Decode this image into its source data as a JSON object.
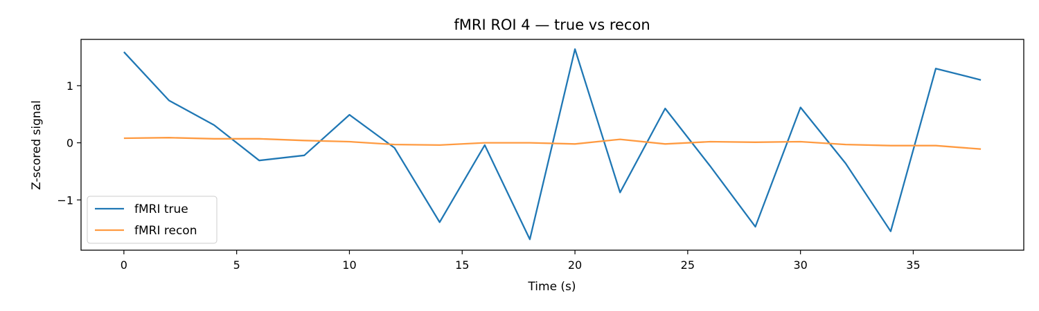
{
  "chart_data": {
    "type": "line",
    "title": "fMRI ROI 4 — true vs recon",
    "xlabel": "Time (s)",
    "ylabel": "Z-scored signal",
    "xlim": [
      -1.9,
      39.9
    ],
    "ylim": [
      -1.88,
      1.81
    ],
    "xticks": [
      0,
      5,
      10,
      15,
      20,
      25,
      30,
      35
    ],
    "yticks": [
      -1,
      0,
      1
    ],
    "ytick_labels": [
      "−1",
      "0",
      "1"
    ],
    "grid": false,
    "legend_position": "lower-left",
    "series": [
      {
        "name": "fMRI true",
        "color": "#1f77b4",
        "x": [
          0,
          2,
          4,
          6,
          8,
          10,
          12,
          14,
          16,
          18,
          20,
          22,
          24,
          26,
          28,
          30,
          32,
          34,
          36,
          38
        ],
        "values": [
          1.59,
          0.74,
          0.31,
          -0.31,
          -0.22,
          0.49,
          -0.09,
          -1.39,
          -0.04,
          -1.69,
          1.64,
          -0.87,
          0.6,
          -0.41,
          -1.47,
          0.62,
          -0.36,
          -1.55,
          1.3,
          1.1
        ]
      },
      {
        "name": "fMRI recon",
        "color": "#ff9a40",
        "x": [
          0,
          2,
          4,
          6,
          8,
          10,
          12,
          14,
          16,
          18,
          20,
          22,
          24,
          26,
          28,
          30,
          32,
          34,
          36,
          38
        ],
        "values": [
          0.08,
          0.09,
          0.07,
          0.07,
          0.04,
          0.02,
          -0.03,
          -0.04,
          0.0,
          0.0,
          -0.02,
          0.06,
          -0.02,
          0.02,
          0.01,
          0.02,
          -0.03,
          -0.05,
          -0.05,
          -0.11
        ]
      }
    ]
  }
}
